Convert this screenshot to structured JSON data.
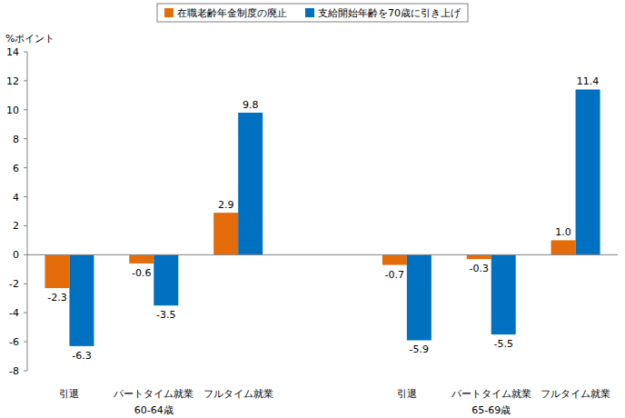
{
  "chart_data": {
    "type": "bar",
    "y_label": "%ポイント",
    "categories": [
      "引退",
      "パートタイム就業",
      "フルタイム就業",
      "引退",
      "パートタイム就業",
      "フルタイム就業"
    ],
    "groups": [
      "60-64歳",
      "65-69歳"
    ],
    "series": [
      {
        "name": "在職老齢年金制度の廃止",
        "color": "#E46C0A",
        "values": [
          -2.3,
          -0.6,
          2.9,
          -0.7,
          -0.3,
          1.0
        ],
        "value_labels": [
          "-2.3",
          "-0.6",
          "2.9",
          "-0.7",
          "-0.3",
          "1.0"
        ]
      },
      {
        "name": "支給開始年齢を70歳に引き上げ",
        "color": "#0070C0",
        "values": [
          -6.3,
          -3.5,
          9.8,
          -5.9,
          -5.5,
          11.4
        ]
      }
    ],
    "ylim": [
      -8,
      14
    ],
    "yticks": [
      -8,
      -6,
      -4,
      -2,
      0,
      2,
      4,
      6,
      8,
      10,
      12,
      14
    ],
    "grid": false,
    "data_labels": true,
    "legend": "top"
  }
}
